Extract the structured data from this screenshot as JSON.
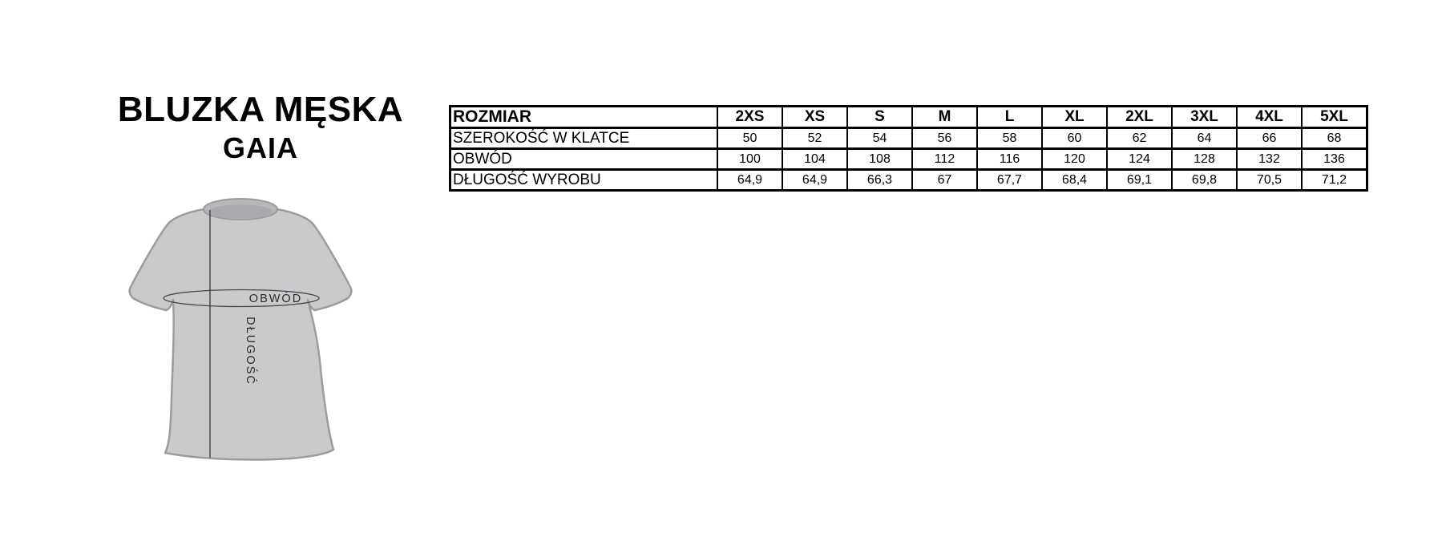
{
  "page": {
    "background_color": "#ffffff"
  },
  "title": {
    "line1": "BLUZKA MĘSKA",
    "line2": "GAIA"
  },
  "diagram": {
    "garment": "t-shirt-front-outline",
    "circumference_label": "OBWÓD",
    "length_label": "DŁUGOŚĆ",
    "colors": {
      "body": "#c9cacc",
      "outline": "#9b9c9e",
      "collar": "#b6b7b9",
      "collar_inner": "#a8a9ac",
      "measure_line": "#47474a",
      "label_text": "#2b2b2d"
    }
  },
  "size_table": {
    "corner_header": "ROZMIAR",
    "sizes": [
      "2XS",
      "XS",
      "S",
      "M",
      "L",
      "XL",
      "2XL",
      "3XL",
      "4XL",
      "5XL"
    ],
    "rows": [
      {
        "label": "SZEROKOŚĆ W KLATCE",
        "values": [
          "50",
          "52",
          "54",
          "56",
          "58",
          "60",
          "62",
          "64",
          "66",
          "68"
        ]
      },
      {
        "label": "OBWÓD",
        "values": [
          "100",
          "104",
          "108",
          "112",
          "116",
          "120",
          "124",
          "128",
          "132",
          "136"
        ]
      },
      {
        "label": "DŁUGOŚĆ WYROBU",
        "values": [
          "64,9",
          "64,9",
          "66,3",
          "67",
          "67,7",
          "68,4",
          "69,1",
          "69,8",
          "70,5",
          "71,2"
        ]
      }
    ]
  }
}
